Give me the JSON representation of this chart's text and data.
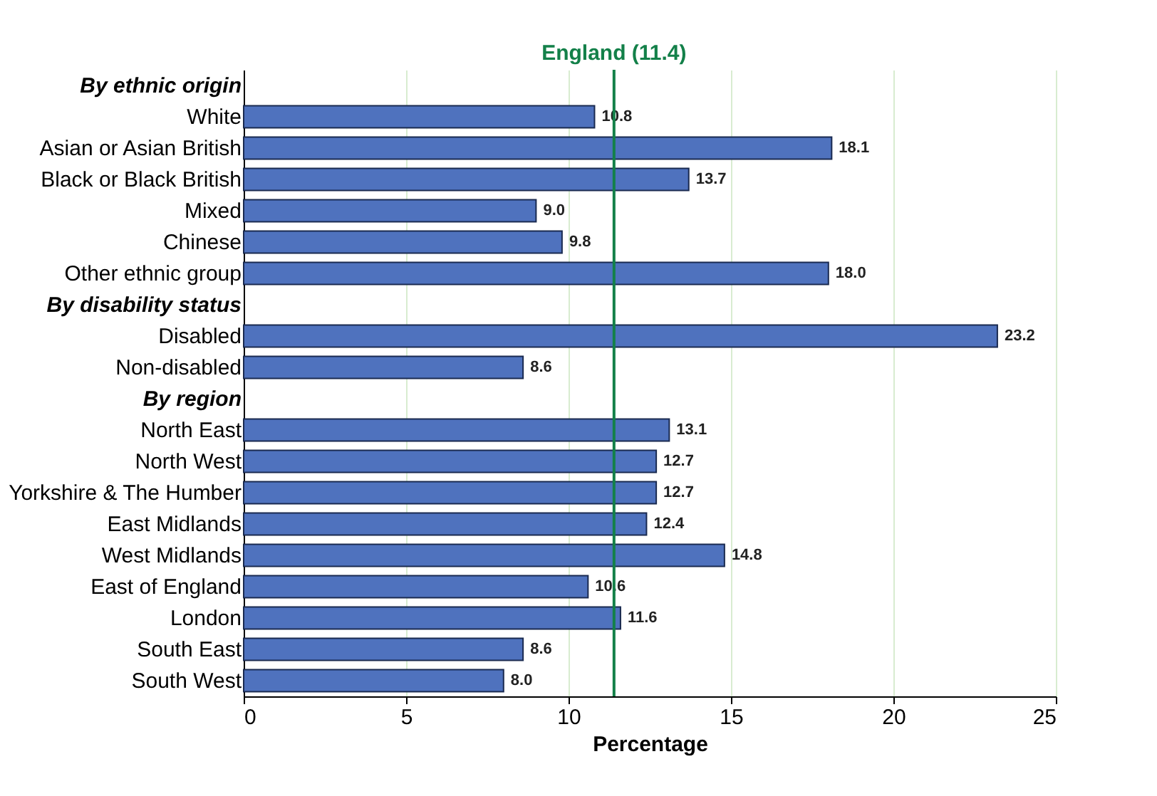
{
  "chart_data": {
    "type": "bar",
    "orientation": "horizontal",
    "xlabel": "Percentage",
    "categories": [
      "By ethnic origin",
      "White",
      "Asian or Asian British",
      "Black or Black British",
      "Mixed",
      "Chinese",
      "Other ethnic group",
      "By disability status",
      "Disabled",
      "Non-disabled",
      "By region",
      "North East",
      "North West",
      "Yorkshire & The Humber",
      "East Midlands",
      "West Midlands",
      "East of England",
      "London",
      "South East",
      "South West"
    ],
    "values": [
      null,
      10.8,
      18.1,
      13.7,
      9.0,
      9.8,
      18.0,
      null,
      23.2,
      8.6,
      null,
      13.1,
      12.7,
      12.7,
      12.4,
      14.8,
      10.6,
      11.6,
      8.6,
      8.0
    ],
    "value_labels": [
      null,
      "10.8",
      "18.1",
      "13.7",
      "9.0",
      "9.8",
      "18.0",
      null,
      "23.2",
      "8.6",
      null,
      "13.1",
      "12.7",
      "12.7",
      "12.4",
      "14.8",
      "10.6",
      "11.6",
      "8.6",
      "8.0"
    ],
    "color": "#4f72be",
    "xlim": [
      0,
      25
    ],
    "xticks": [
      0,
      5,
      10,
      15,
      20,
      25
    ],
    "grid": "x",
    "ref_lines": [
      {
        "axis": "x",
        "value": 11.4,
        "label": "England (11.4)",
        "color": "#138049"
      }
    ]
  }
}
